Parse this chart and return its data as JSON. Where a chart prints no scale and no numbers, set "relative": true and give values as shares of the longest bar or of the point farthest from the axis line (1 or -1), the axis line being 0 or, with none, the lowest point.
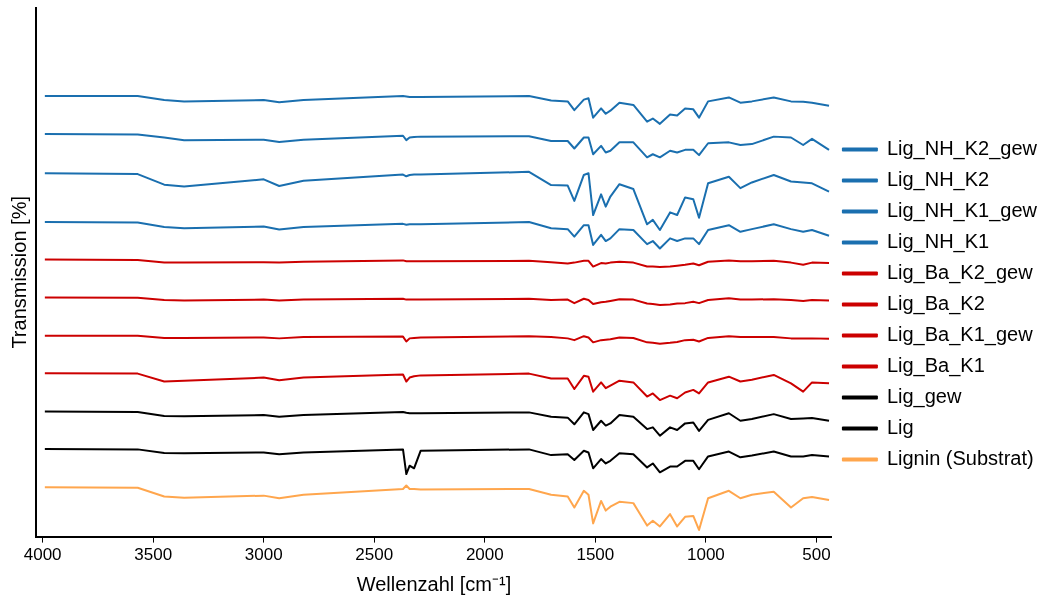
{
  "chart_data": {
    "type": "line",
    "xlabel": "Wellenzahl [cm⁻¹]",
    "ylabel": "Transmission [%]",
    "relative": true,
    "legend": "right",
    "xlim": [
      4030,
      430
    ],
    "xticks": [
      4000,
      3500,
      3000,
      2500,
      2000,
      1500,
      1000,
      500
    ],
    "x": [
      3990,
      3570,
      3450,
      3360,
      3000,
      2930,
      2820,
      2370,
      2355,
      2340,
      2320,
      2290,
      1800,
      1700,
      1625,
      1595,
      1552,
      1531,
      1510,
      1474,
      1453,
      1432,
      1391,
      1328,
      1266,
      1240,
      1208,
      1162,
      1130,
      1094,
      1057,
      1031,
      990,
      896,
      844,
      792,
      693,
      615,
      560,
      520,
      443
    ],
    "series": [
      {
        "name": "Lig_NH_K2_gew",
        "color": "#1a6faf",
        "values": [
          1,
          1,
          0.991,
          0.988,
          0.991,
          0.986,
          0.991,
          1,
          0.999,
          0.998,
          0.998,
          0.998,
          1,
          0.99,
          0.988,
          0.968,
          0.992,
          0.995,
          0.951,
          0.972,
          0.96,
          0.967,
          0.985,
          0.98,
          0.942,
          0.949,
          0.937,
          0.958,
          0.956,
          0.972,
          0.97,
          0.951,
          0.988,
          0.997,
          0.985,
          0.988,
          0.997,
          0.988,
          0.987,
          0.985,
          0.978
        ]
      },
      {
        "name": "Lig_NH_K2",
        "color": "#1a6faf",
        "values": [
          0.914,
          0.913,
          0.906,
          0.9,
          0.901,
          0.896,
          0.901,
          0.91,
          0.9,
          0.906,
          0.907,
          0.908,
          0.909,
          0.898,
          0.898,
          0.881,
          0.906,
          0.906,
          0.868,
          0.887,
          0.872,
          0.876,
          0.895,
          0.895,
          0.861,
          0.868,
          0.861,
          0.876,
          0.872,
          0.878,
          0.878,
          0.866,
          0.893,
          0.895,
          0.889,
          0.891,
          0.908,
          0.906,
          0.889,
          0.903,
          0.878
        ]
      },
      {
        "name": "Lig_NH_K1_gew",
        "color": "#1a6faf",
        "values": [
          0.825,
          0.823,
          0.799,
          0.795,
          0.811,
          0.796,
          0.808,
          0.822,
          0.818,
          0.821,
          0.822,
          0.822,
          0.828,
          0.798,
          0.797,
          0.762,
          0.821,
          0.825,
          0.73,
          0.777,
          0.749,
          0.772,
          0.8,
          0.789,
          0.709,
          0.719,
          0.696,
          0.736,
          0.73,
          0.77,
          0.766,
          0.724,
          0.802,
          0.817,
          0.791,
          0.804,
          0.821,
          0.806,
          0.804,
          0.802,
          0.783
        ]
      },
      {
        "name": "Lig_NH_K1",
        "color": "#1a6faf",
        "values": [
          0.714,
          0.713,
          0.703,
          0.7,
          0.704,
          0.697,
          0.703,
          0.71,
          0.708,
          0.709,
          0.709,
          0.709,
          0.714,
          0.7,
          0.698,
          0.681,
          0.707,
          0.707,
          0.662,
          0.685,
          0.671,
          0.677,
          0.698,
          0.696,
          0.664,
          0.671,
          0.654,
          0.677,
          0.671,
          0.677,
          0.677,
          0.664,
          0.696,
          0.707,
          0.692,
          0.698,
          0.709,
          0.698,
          0.692,
          0.696,
          0.683
        ]
      },
      {
        "name": "Lig_Ba_K2_gew",
        "color": "#cc0000",
        "values": [
          0.629,
          0.628,
          0.622,
          0.622,
          0.623,
          0.622,
          0.624,
          0.627,
          0.625,
          0.625,
          0.625,
          0.625,
          0.626,
          0.623,
          0.62,
          0.622,
          0.626,
          0.626,
          0.613,
          0.621,
          0.62,
          0.622,
          0.624,
          0.622,
          0.613,
          0.613,
          0.612,
          0.613,
          0.615,
          0.617,
          0.62,
          0.616,
          0.624,
          0.627,
          0.625,
          0.625,
          0.626,
          0.622,
          0.617,
          0.622,
          0.621
        ]
      },
      {
        "name": "Lig_Ba_K2",
        "color": "#cc0000",
        "values": [
          0.543,
          0.542,
          0.537,
          0.536,
          0.538,
          0.536,
          0.538,
          0.54,
          0.538,
          0.538,
          0.538,
          0.538,
          0.54,
          0.537,
          0.538,
          0.53,
          0.54,
          0.537,
          0.528,
          0.532,
          0.533,
          0.535,
          0.539,
          0.538,
          0.529,
          0.528,
          0.526,
          0.527,
          0.529,
          0.53,
          0.533,
          0.53,
          0.537,
          0.541,
          0.538,
          0.538,
          0.539,
          0.537,
          0.535,
          0.537,
          0.536
        ]
      },
      {
        "name": "Lig_Ba_K1_gew",
        "color": "#cc0000",
        "values": [
          0.456,
          0.456,
          0.451,
          0.451,
          0.452,
          0.45,
          0.453,
          0.454,
          0.443,
          0.45,
          0.451,
          0.452,
          0.455,
          0.453,
          0.45,
          0.446,
          0.455,
          0.452,
          0.441,
          0.446,
          0.447,
          0.448,
          0.452,
          0.451,
          0.441,
          0.44,
          0.438,
          0.44,
          0.442,
          0.446,
          0.447,
          0.443,
          0.451,
          0.455,
          0.453,
          0.453,
          0.453,
          0.45,
          0.45,
          0.45,
          0.449
        ]
      },
      {
        "name": "Lig_Ba_K1",
        "color": "#cc0000",
        "values": [
          0.371,
          0.37,
          0.352,
          0.354,
          0.361,
          0.355,
          0.361,
          0.368,
          0.352,
          0.361,
          0.364,
          0.366,
          0.37,
          0.359,
          0.359,
          0.335,
          0.365,
          0.363,
          0.329,
          0.35,
          0.337,
          0.343,
          0.354,
          0.35,
          0.318,
          0.325,
          0.31,
          0.32,
          0.314,
          0.327,
          0.333,
          0.325,
          0.35,
          0.363,
          0.352,
          0.356,
          0.367,
          0.348,
          0.329,
          0.35,
          0.348
        ]
      },
      {
        "name": "Lig_gew",
        "color": "#000000",
        "values": [
          0.284,
          0.283,
          0.274,
          0.273,
          0.276,
          0.272,
          0.276,
          0.283,
          0.281,
          0.28,
          0.28,
          0.28,
          0.282,
          0.272,
          0.27,
          0.255,
          0.282,
          0.278,
          0.242,
          0.263,
          0.252,
          0.257,
          0.276,
          0.272,
          0.244,
          0.248,
          0.229,
          0.248,
          0.242,
          0.257,
          0.259,
          0.24,
          0.265,
          0.28,
          0.263,
          0.267,
          0.278,
          0.267,
          0.268,
          0.269,
          0.263
        ]
      },
      {
        "name": "Lig",
        "color": "#000000",
        "values": [
          0.199,
          0.198,
          0.19,
          0.189,
          0.191,
          0.187,
          0.191,
          0.198,
          0.142,
          0.161,
          0.155,
          0.195,
          0.198,
          0.185,
          0.187,
          0.174,
          0.195,
          0.191,
          0.155,
          0.176,
          0.166,
          0.172,
          0.189,
          0.187,
          0.157,
          0.166,
          0.146,
          0.159,
          0.159,
          0.172,
          0.172,
          0.153,
          0.182,
          0.193,
          0.18,
          0.184,
          0.193,
          0.182,
          0.182,
          0.185,
          0.182
        ]
      },
      {
        "name": "Lignin (Substrat)",
        "color": "#ffa64d",
        "values": [
          0.112,
          0.111,
          0.091,
          0.088,
          0.093,
          0.087,
          0.095,
          0.108,
          0.116,
          0.108,
          0.108,
          0.107,
          0.108,
          0.095,
          0.091,
          0.066,
          0.104,
          0.095,
          0.03,
          0.081,
          0.059,
          0.068,
          0.079,
          0.076,
          0.025,
          0.036,
          0.023,
          0.051,
          0.023,
          0.045,
          0.047,
          0.015,
          0.087,
          0.104,
          0.087,
          0.095,
          0.102,
          0.066,
          0.087,
          0.09,
          0.083
        ]
      }
    ]
  }
}
